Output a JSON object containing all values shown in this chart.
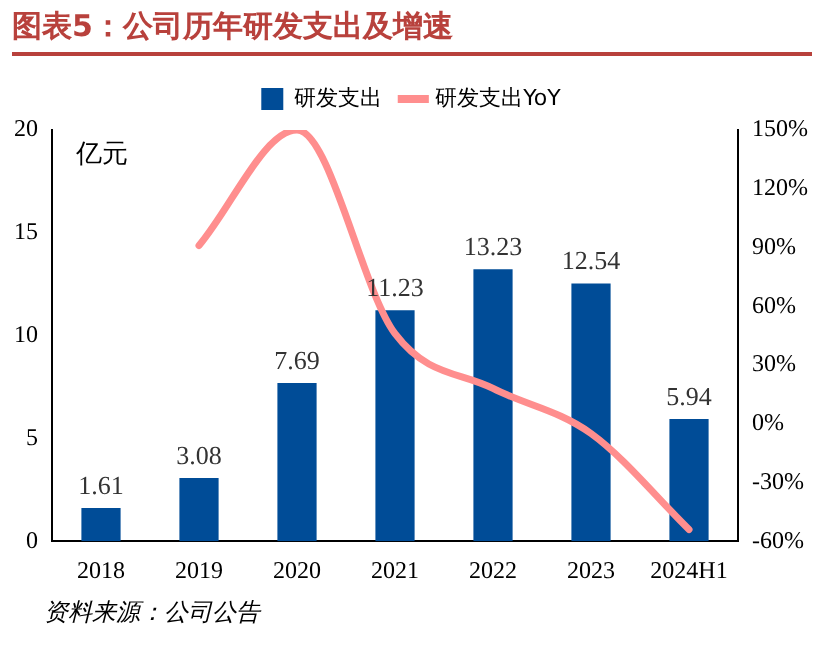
{
  "chart_data": {
    "type": "bar",
    "title": "图表5：公司历年研发支出及增速",
    "annotations": [
      "亿元",
      "资料来源：公司公告"
    ],
    "categories": [
      "2018",
      "2019",
      "2020",
      "2021",
      "2022",
      "2023",
      "2024H1"
    ],
    "series": [
      {
        "name": "研发支出",
        "color": "#004c97",
        "values": [
          1.61,
          3.08,
          7.69,
          11.23,
          13.23,
          12.54,
          5.94
        ],
        "value_labels": [
          "1.61",
          "3.08",
          "7.69",
          "11.23",
          "13.23",
          "12.54",
          "5.94"
        ]
      },
      {
        "name": "研发支出YoY",
        "type": "line",
        "axis": "y2",
        "color": "#ff8e8e",
        "values": [
          null,
          91,
          150,
          46,
          18,
          -5,
          -54
        ]
      }
    ],
    "legend": "top",
    "grid": false,
    "marker": "none",
    "ylim": [
      0,
      20
    ],
    "yticks": [
      0,
      5,
      10,
      15,
      20
    ],
    "y2lim": [
      -60,
      150
    ],
    "y2ticks": [
      {
        "value": -60,
        "label": "-60%"
      },
      {
        "value": -30,
        "label": "-30%"
      },
      {
        "value": 0,
        "label": "0%"
      },
      {
        "value": 30,
        "label": "30%"
      },
      {
        "value": 60,
        "label": "60%"
      },
      {
        "value": 90,
        "label": "90%"
      },
      {
        "value": 120,
        "label": "120%"
      },
      {
        "value": 150,
        "label": "150%"
      }
    ]
  }
}
